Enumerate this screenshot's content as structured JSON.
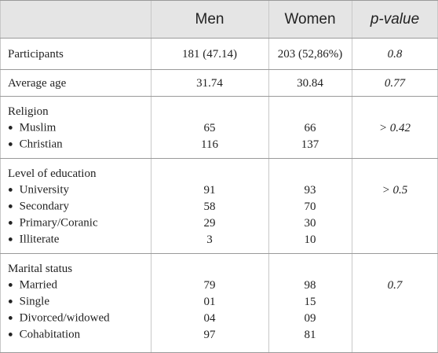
{
  "header": {
    "men": "Men",
    "women": "Women",
    "p_value": "p-value"
  },
  "rows": [
    {
      "label": "Participants",
      "men": "181 (47.14)",
      "women": "203 (52,86%)",
      "p": "0.8"
    },
    {
      "label": "Average age",
      "men": "31.74",
      "women": "30.84",
      "p": "0.77"
    },
    {
      "label": "Religion",
      "p": "> 0.42",
      "items": [
        {
          "label": "Muslim",
          "men": "65",
          "women": "66"
        },
        {
          "label": "Christian",
          "men": "116",
          "women": "137"
        }
      ]
    },
    {
      "label": "Level of education",
      "p": "> 0.5",
      "items": [
        {
          "label": "University",
          "men": "91",
          "women": "93"
        },
        {
          "label": "Secondary",
          "men": "58",
          "women": "70"
        },
        {
          "label": "Primary/Coranic",
          "men": "29",
          "women": "30"
        },
        {
          "label": "Illiterate",
          "men": "3",
          "women": "10"
        }
      ]
    },
    {
      "label": "Marital status",
      "p": "0.7",
      "items": [
        {
          "label": "Married",
          "men": "79",
          "women": "98"
        },
        {
          "label": "Single",
          "men": "01",
          "women": "15"
        },
        {
          "label": "Divorced/widowed",
          "men": "04",
          "women": "09"
        },
        {
          "label": "Cohabitation",
          "men": "97",
          "women": "81"
        }
      ]
    }
  ]
}
